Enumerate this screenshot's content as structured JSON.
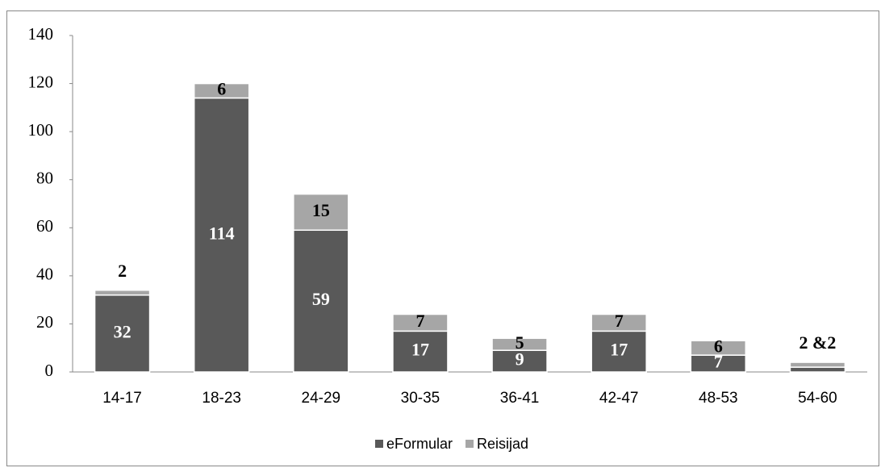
{
  "chart_data": {
    "type": "stacked_bar",
    "categories": [
      "14-17",
      "18-23",
      "24-29",
      "30-35",
      "36-41",
      "42-47",
      "48-53",
      "54-60"
    ],
    "series": [
      {
        "name": "eFormular",
        "color": "#595959",
        "values": [
          32,
          114,
          59,
          17,
          9,
          17,
          7,
          2
        ],
        "value_labels": [
          "32",
          "114",
          "59",
          "17",
          "9",
          "17",
          "7",
          null
        ]
      },
      {
        "name": "Reisijad",
        "color": "#a6a6a6",
        "values": [
          2,
          6,
          15,
          7,
          5,
          7,
          6,
          2
        ],
        "value_labels": [
          "2",
          "6",
          "15",
          "7",
          "5",
          "7",
          "6",
          "2 &2"
        ]
      }
    ],
    "ylim": [
      0,
      140
    ],
    "yticks": [
      0,
      20,
      40,
      60,
      80,
      100,
      120,
      140
    ],
    "legend": "bottom",
    "grid": false
  }
}
